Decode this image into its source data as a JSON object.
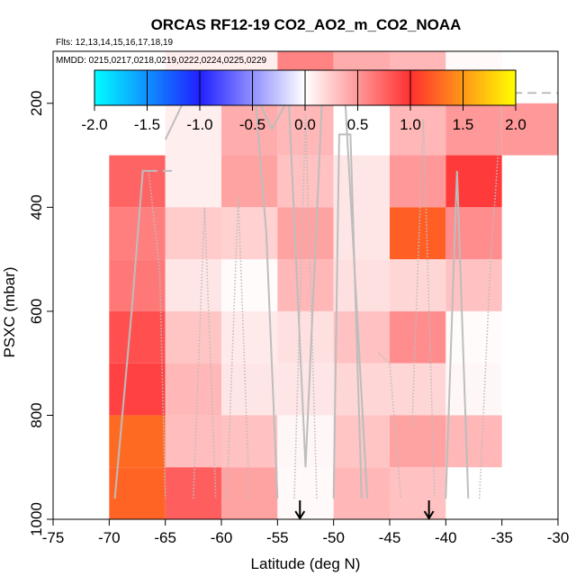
{
  "title": "ORCAS RF12-19 CO2_AO2_m_CO2_NOAA",
  "flights_text": "Flts: 12,13,14,15,16,17,18,19",
  "dates_text": "MMDD: 0215,0217,0218,0219,0222,0224,0225,0229",
  "chart_data": {
    "type": "heatmap",
    "title": "ORCAS RF12-19 CO2_AO2_m_CO2_NOAA",
    "xlabel": "Latitude (deg N)",
    "ylabel": "PSXC (mbar)",
    "xlim": [
      -75,
      -30
    ],
    "ylim": [
      1000,
      100
    ],
    "x_ticks": [
      -75,
      -70,
      -65,
      -60,
      -55,
      -50,
      -45,
      -40,
      -35,
      -30
    ],
    "x_tick_labels": [
      "-75",
      "-70",
      "-65",
      "-60",
      "-55",
      "-50",
      "-45",
      "-40",
      "-35",
      "-30"
    ],
    "y_ticks": [
      200,
      400,
      600,
      800,
      1000
    ],
    "y_tick_labels": [
      "200",
      "400",
      "600",
      "800",
      "1000"
    ],
    "colorbar": {
      "min": -2.0,
      "max": 2.0,
      "ticks": [
        -2.0,
        -1.5,
        -1.0,
        -0.5,
        0.0,
        0.5,
        1.0,
        1.5,
        2.0
      ],
      "tick_labels": [
        "-2.0",
        "-1.5",
        "-1.0",
        "-0.5",
        "0.0",
        "0.5",
        "1.0",
        "1.5",
        "2.0"
      ],
      "stops": [
        {
          "v": -2.0,
          "color": "#00ffff"
        },
        {
          "v": -1.0,
          "color": "#2020ff"
        },
        {
          "v": 0.0,
          "color": "#ffffff"
        },
        {
          "v": 1.0,
          "color": "#ff3030"
        },
        {
          "v": 2.0,
          "color": "#ffff00"
        }
      ]
    },
    "bins": {
      "lat_edges": [
        -70,
        -65,
        -60,
        -55,
        -50,
        -45,
        -40,
        -35,
        -30
      ],
      "pressure_rows": [
        {
          "p_top": 100,
          "p_bot": 200,
          "values": [
            null,
            0.08,
            0.08,
            0.6,
            0.4,
            0.35,
            0.03,
            null
          ]
        },
        {
          "p_top": 200,
          "p_bot": 300,
          "values": [
            null,
            0.08,
            0.4,
            0.35,
            0.0,
            0.35,
            0.5,
            0.5
          ]
        },
        {
          "p_top": 300,
          "p_bot": 400,
          "values": [
            0.75,
            0.08,
            0.45,
            0.3,
            0.12,
            0.5,
            0.95,
            null
          ]
        },
        {
          "p_top": 400,
          "p_bot": 500,
          "values": [
            0.62,
            0.25,
            0.22,
            0.45,
            0.12,
            1.22,
            0.55,
            null
          ]
        },
        {
          "p_top": 500,
          "p_bot": 600,
          "values": [
            0.65,
            0.12,
            0.02,
            0.35,
            0.15,
            0.2,
            0.3,
            null
          ]
        },
        {
          "p_top": 600,
          "p_bot": 700,
          "values": [
            0.85,
            0.28,
            0.1,
            0.15,
            0.3,
            0.55,
            0.02,
            null
          ]
        },
        {
          "p_top": 700,
          "p_bot": 800,
          "values": [
            0.92,
            0.35,
            0.12,
            0.12,
            0.2,
            0.2,
            0.04,
            null
          ]
        },
        {
          "p_top": 800,
          "p_bot": 900,
          "values": [
            1.28,
            0.32,
            0.3,
            0.04,
            0.28,
            0.45,
            0.35,
            null
          ]
        },
        {
          "p_top": 900,
          "p_bot": 1000,
          "values": [
            1.25,
            0.78,
            0.45,
            0.03,
            0.35,
            0.3,
            null,
            null
          ]
        }
      ]
    },
    "markers": [
      {
        "lat": -53,
        "label": "arrow"
      },
      {
        "lat": -41.5,
        "label": "arrow"
      }
    ],
    "profiles": [
      {
        "style": "solid",
        "points": [
          [
            -69.5,
            960
          ],
          [
            -68,
            600
          ],
          [
            -67,
            330
          ],
          [
            -66.5,
            330
          ]
        ]
      },
      {
        "style": "dashed",
        "points": [
          [
            -66.5,
            330
          ],
          [
            -64,
            330
          ]
        ]
      },
      {
        "style": "dotted",
        "points": [
          [
            -66.5,
            330
          ],
          [
            -65.5,
            520
          ],
          [
            -65,
            960
          ]
        ]
      },
      {
        "style": "solid",
        "points": [
          [
            -65,
            270
          ],
          [
            -63,
            180
          ],
          [
            -57,
            180
          ],
          [
            -56,
            450
          ],
          [
            -55,
            960
          ]
        ]
      },
      {
        "style": "solid",
        "points": [
          [
            -57,
            180
          ],
          [
            -55.5,
            250
          ],
          [
            -54,
            190
          ],
          [
            -52.5,
            900
          ],
          [
            -51,
            180
          ],
          [
            -49,
            180
          ],
          [
            -47,
            960
          ]
        ]
      },
      {
        "style": "dotted",
        "points": [
          [
            -62.5,
            960
          ],
          [
            -61.5,
            400
          ],
          [
            -60.5,
            960
          ]
        ]
      },
      {
        "style": "dotted",
        "points": [
          [
            -59.5,
            960
          ],
          [
            -58.5,
            380
          ],
          [
            -57.5,
            960
          ]
        ]
      },
      {
        "style": "dotted",
        "points": [
          [
            -53.5,
            960
          ],
          [
            -52.5,
            220
          ],
          [
            -51.5,
            960
          ]
        ]
      },
      {
        "style": "solid",
        "points": [
          [
            -50,
            960
          ],
          [
            -49.5,
            260
          ],
          [
            -48.5,
            260
          ],
          [
            -47.5,
            960
          ]
        ]
      },
      {
        "style": "dotted",
        "points": [
          [
            -46,
            680
          ],
          [
            -45,
            700
          ],
          [
            -44,
            960
          ]
        ]
      },
      {
        "style": "dotted",
        "points": [
          [
            -43,
            820
          ],
          [
            -42,
            230
          ],
          [
            -41,
            960
          ]
        ]
      },
      {
        "style": "solid",
        "points": [
          [
            -40,
            960
          ],
          [
            -39,
            330
          ],
          [
            -38,
            960
          ]
        ]
      },
      {
        "style": "dotted",
        "points": [
          [
            -37,
            960
          ],
          [
            -36,
            500
          ],
          [
            -35.5,
            350
          ],
          [
            -35,
            180
          ],
          [
            -33.5,
            180
          ]
        ]
      },
      {
        "style": "dashed",
        "points": [
          [
            -34,
            180
          ],
          [
            -30,
            180
          ]
        ]
      }
    ]
  }
}
